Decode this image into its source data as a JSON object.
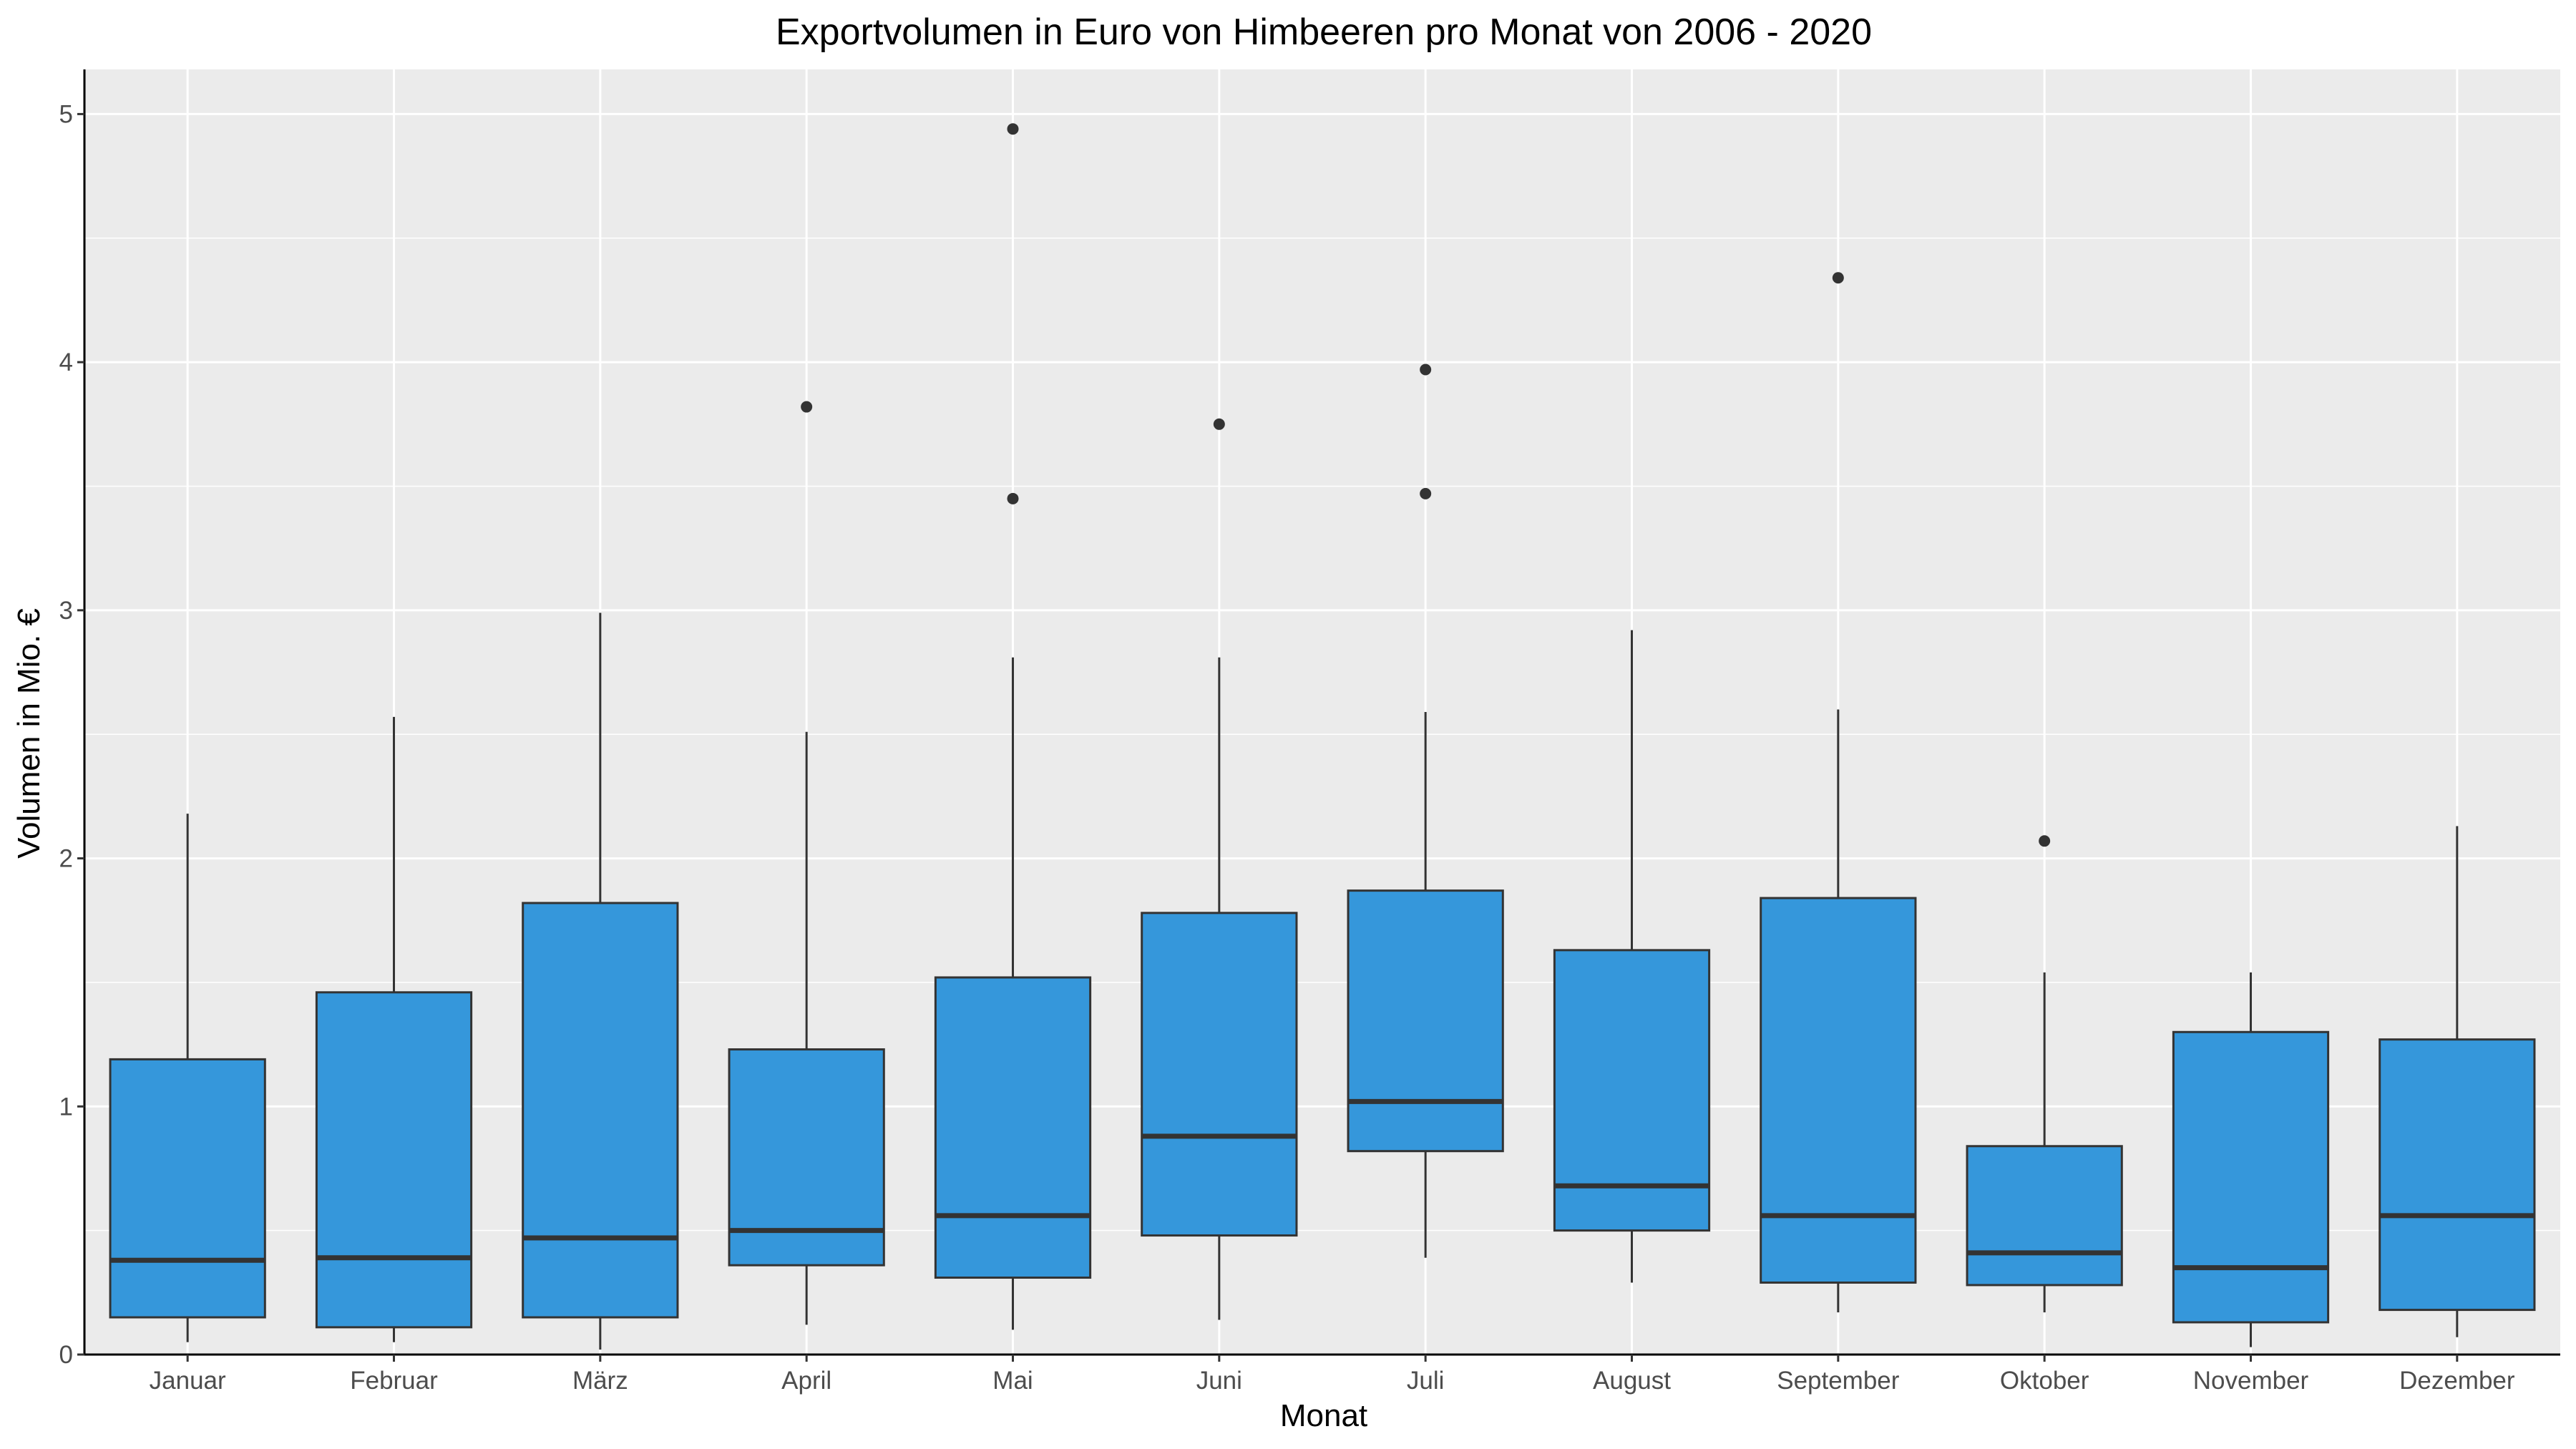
{
  "chart_data": {
    "type": "boxplot",
    "title": "Exportvolumen in Euro von Himbeeren pro Monat von 2006 - 2020",
    "xlabel": "Monat",
    "ylabel": "Volumen in Mio. €",
    "ylim": [
      0,
      5.18
    ],
    "yticks": [
      "0",
      "1",
      "2",
      "3",
      "4",
      "5"
    ],
    "grid": true,
    "categories": [
      "Januar",
      "Februar",
      "März",
      "April",
      "Mai",
      "Juni",
      "Juli",
      "August",
      "September",
      "Oktober",
      "November",
      "Dezember"
    ],
    "boxes": [
      {
        "min": 0.05,
        "q1": 0.15,
        "median": 0.38,
        "q3": 1.19,
        "max": 2.18,
        "outliers": []
      },
      {
        "min": 0.05,
        "q1": 0.11,
        "median": 0.39,
        "q3": 1.46,
        "max": 2.57,
        "outliers": []
      },
      {
        "min": 0.02,
        "q1": 0.15,
        "median": 0.47,
        "q3": 1.82,
        "max": 2.99,
        "outliers": []
      },
      {
        "min": 0.12,
        "q1": 0.36,
        "median": 0.5,
        "q3": 1.23,
        "max": 2.51,
        "outliers": [
          3.82
        ]
      },
      {
        "min": 0.1,
        "q1": 0.31,
        "median": 0.56,
        "q3": 1.52,
        "max": 2.81,
        "outliers": [
          3.45,
          4.94
        ]
      },
      {
        "min": 0.14,
        "q1": 0.48,
        "median": 0.88,
        "q3": 1.78,
        "max": 2.81,
        "outliers": [
          3.75
        ]
      },
      {
        "min": 0.39,
        "q1": 0.82,
        "median": 1.02,
        "q3": 1.87,
        "max": 2.59,
        "outliers": [
          3.47,
          3.97
        ]
      },
      {
        "min": 0.29,
        "q1": 0.5,
        "median": 0.68,
        "q3": 1.63,
        "max": 2.92,
        "outliers": []
      },
      {
        "min": 0.17,
        "q1": 0.29,
        "median": 0.56,
        "q3": 1.84,
        "max": 2.6,
        "outliers": [
          4.34
        ]
      },
      {
        "min": 0.17,
        "q1": 0.28,
        "median": 0.41,
        "q3": 0.84,
        "max": 1.54,
        "outliers": [
          2.07
        ]
      },
      {
        "min": 0.03,
        "q1": 0.13,
        "median": 0.35,
        "q3": 1.3,
        "max": 1.54,
        "outliers": []
      },
      {
        "min": 0.07,
        "q1": 0.18,
        "median": 0.56,
        "q3": 1.27,
        "max": 2.13,
        "outliers": []
      }
    ],
    "colors": {
      "panel": "#ebebeb",
      "grid": "#ffffff",
      "box_fill": "#3597db",
      "box_stroke": "#333333",
      "outlier": "#333333"
    }
  }
}
